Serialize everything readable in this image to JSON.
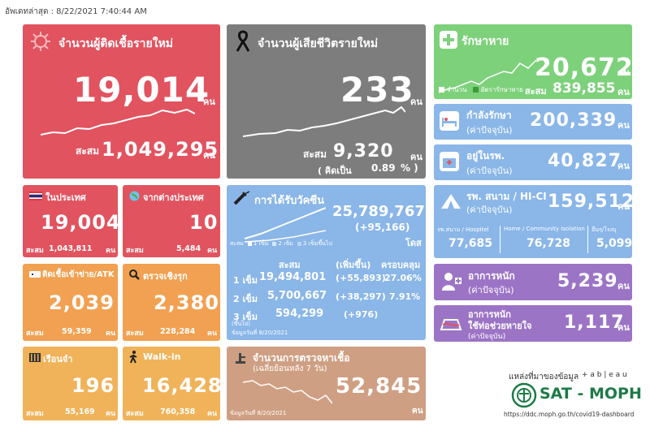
{
  "updated": "อัพเดทล่าสุด : 8/22/2021 7:40:44 AM",
  "unit": "คน",
  "new_cases": {
    "title": "จำนวนผู้ติดเชื้อรายใหม่",
    "value": "19,014",
    "cum_label": "สะสม",
    "cum": "1,049,295"
  },
  "new_deaths": {
    "title": "จำนวนผู้เสียชีวิตรายใหม่",
    "value": "233",
    "cum_label": "สะสม",
    "cum": "9,320",
    "pct_label": "( คิดเป็น",
    "pct": "0.89",
    "pct_suffix": "% )"
  },
  "recovered": {
    "title": "รักษาหาย",
    "value": "20,672",
    "legend_daily": "จำนวน",
    "legend_rate": "อัตรารักษาหาย",
    "cum_label": "สะสม",
    "cum": "839,855"
  },
  "in_treatment": {
    "title": "กำลังรักษา",
    "sub": "(ค่าปัจจุบัน)",
    "value": "200,339"
  },
  "hospital": {
    "title": "อยู่ในรพ.",
    "sub": "(ค่าปัจจุบัน)",
    "value": "40,827"
  },
  "field": {
    "title": "รพ. สนาม / HI-CI",
    "sub": "(ค่าปัจจุบัน)",
    "value": "159,512",
    "col1_label": "รพ.สนาม / Hospitel",
    "col1": "77,685",
    "col2_label": "Home / Community Isolation",
    "col2": "76,728",
    "col3_label": "อื่นๆ/โรงบุ",
    "col3": "5,099"
  },
  "severe": {
    "title": "อาการหนัก",
    "sub": "(ค่าปัจจุบัน)",
    "value": "5,239"
  },
  "ventilator": {
    "title1": "อาการหนัก",
    "title2": "ใช้ท่อช่วยหายใจ",
    "sub": "(ค่าปัจจุบัน)",
    "value": "1,117"
  },
  "domestic": {
    "title": "ในประเทศ",
    "value": "19,004",
    "cum_label": "สะสม",
    "cum": "1,043,811"
  },
  "abroad": {
    "title": "จากต่างประเทศ",
    "value": "10",
    "cum_label": "สะสม",
    "cum": "5,484"
  },
  "atk": {
    "title": "ติดเชื้อเข้าข่าย/ATK",
    "value": "2,039",
    "cum_label": "สะสม",
    "cum": "59,359"
  },
  "proactive": {
    "title": "ตรวจเชิงรุก",
    "value": "2,380",
    "cum_label": "สะสม",
    "cum": "228,284"
  },
  "prison": {
    "title": "เรือนจำ",
    "value": "196",
    "cum_label": "สะสม",
    "cum": "55,169"
  },
  "walkin": {
    "title": "Walk-in",
    "value": "16,428",
    "cum_label": "สะสม",
    "cum": "760,358"
  },
  "vaccine": {
    "title": "การได้รับวัคซีน",
    "total": "25,789,767",
    "delta": "(+95,166)",
    "unit": "โดส",
    "legend": {
      "cum": "สะสม",
      "d1": "1 เข็ม",
      "d2": "2 เข็ม",
      "d3": "3 เข็มขึ้นไป"
    },
    "head": {
      "cum": "สะสม",
      "delta": "(เพิ่มขึ้น)",
      "cover": "ครอบคลุม"
    },
    "rows": [
      {
        "label": "1 เข็ม",
        "cum": "19,494,801",
        "delta": "(+55,893)",
        "cover": "27.06%"
      },
      {
        "label": "2 เข็ม",
        "cum": "5,700,667",
        "delta": "(+38,297)",
        "cover": "7.91%"
      },
      {
        "label": "3 เข็ม",
        "sub": "(ขึ้นไป)",
        "cum": "594,299",
        "delta": "(+976)",
        "cover": ""
      }
    ],
    "date": "ข้อมูลวันที่ 8/20/2021"
  },
  "tests": {
    "title": "จำนวนการตรวจหาเชื้อ",
    "sub": "(เฉลี่ยย้อนหลัง 7 วัน)",
    "value": "52,845",
    "date": "ข้อมูลวันที่ 8/20/2021"
  },
  "source": {
    "label": "แหล่งที่มาของข้อมูล",
    "tableau": "+ a b | e a u",
    "org": "SAT - MOPH",
    "url": "https://ddc.moph.go.th/covid19-dashboard"
  },
  "colors": {
    "red": "#e1535f",
    "gray": "#7d7d7d",
    "green": "#7dd17b",
    "blue": "#8ab6e8",
    "purple": "#9c74c6",
    "orange": "#f1a151",
    "tan": "#cf9f83"
  }
}
